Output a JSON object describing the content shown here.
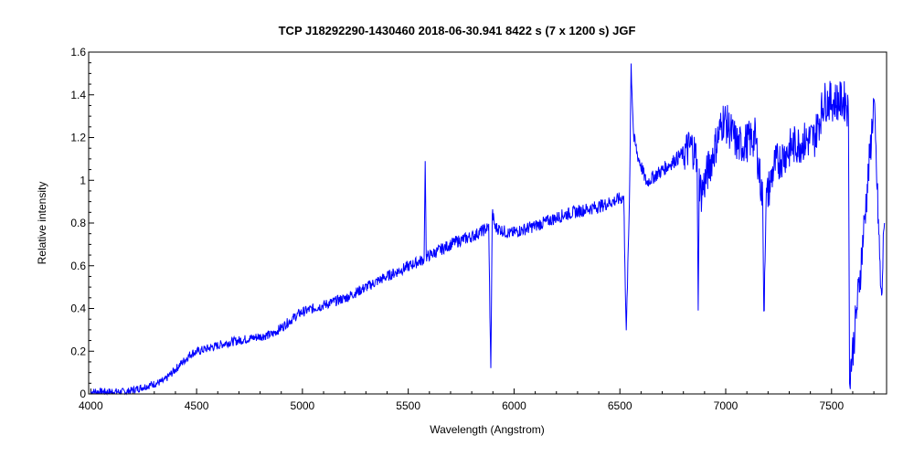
{
  "chart_data": {
    "type": "line",
    "title": "TCP J18292290-1430460   2018-06-30.941   8422 s (7 x 1200 s)   JGF",
    "xlabel": "Wavelength (Angstrom)",
    "ylabel": "Relative intensity",
    "xlim": [
      3990,
      7760
    ],
    "ylim": [
      0,
      1.6
    ],
    "xticks": [
      4000,
      4500,
      5000,
      5500,
      6000,
      6500,
      7000,
      7500
    ],
    "yticks": [
      0,
      0.2,
      0.4,
      0.6,
      0.8,
      1,
      1.2,
      1.4,
      1.6
    ],
    "ytick_labels": [
      "0",
      "0.2",
      "0.4",
      "0.6",
      "0.8",
      "1",
      "1.2",
      "1.4",
      "1.6"
    ],
    "grid": false,
    "line_color": "#0000ff",
    "series": [
      {
        "name": "spectrum",
        "x": [
          4000,
          4170,
          4345,
          4475,
          4645,
          4860,
          4990,
          5205,
          5378,
          5550,
          5575,
          5580,
          5585,
          5720,
          5808,
          5880,
          5890,
          5897,
          5910,
          5980,
          6110,
          6240,
          6410,
          6518,
          6530,
          6545,
          6553,
          6565,
          6583,
          6625,
          6755,
          6840,
          6865,
          6870,
          6875,
          6885,
          6990,
          7060,
          7140,
          7175,
          7180,
          7190,
          7230,
          7315,
          7420,
          7465,
          7570,
          7580,
          7585,
          7600,
          7635,
          7680,
          7700,
          7735,
          7750
        ],
        "y": [
          0.01,
          0.01,
          0.06,
          0.19,
          0.24,
          0.28,
          0.38,
          0.45,
          0.54,
          0.62,
          0.63,
          1.09,
          0.64,
          0.71,
          0.74,
          0.78,
          0.11,
          0.85,
          0.78,
          0.75,
          0.79,
          0.84,
          0.88,
          0.92,
          0.28,
          0.9,
          1.54,
          1.2,
          1.12,
          0.99,
          1.09,
          1.16,
          1.1,
          0.39,
          1.0,
          0.94,
          1.29,
          1.16,
          1.2,
          0.9,
          0.36,
          0.9,
          1.07,
          1.16,
          1.2,
          1.37,
          1.37,
          1.3,
          0.09,
          0.2,
          0.56,
          1.1,
          1.37,
          0.43,
          0.8
        ]
      }
    ]
  }
}
